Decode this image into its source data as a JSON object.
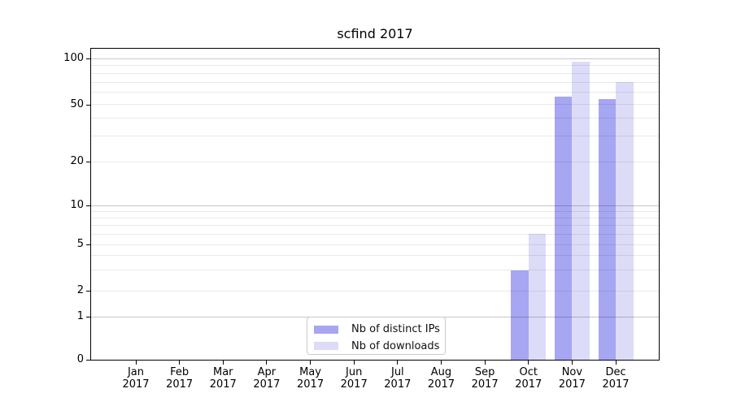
{
  "title": "scfind 2017",
  "chart_data": {
    "type": "bar",
    "title": "scfind 2017",
    "categories": [
      "Jan 2017",
      "Feb 2017",
      "Mar 2017",
      "Apr 2017",
      "May 2017",
      "Jun 2017",
      "Jul 2017",
      "Aug 2017",
      "Sep 2017",
      "Oct 2017",
      "Nov 2017",
      "Dec 2017"
    ],
    "series": [
      {
        "name": "Nb of distinct IPs",
        "color": "#a6a6f2",
        "values": [
          0,
          0,
          0,
          0,
          0,
          0,
          0,
          0,
          0,
          3,
          56,
          54
        ]
      },
      {
        "name": "Nb of downloads",
        "color": "#dcdcf8",
        "values": [
          0,
          0,
          0,
          0,
          0,
          0,
          0,
          0,
          0,
          6,
          95,
          70
        ]
      }
    ],
    "yticks": [
      0,
      1,
      2,
      5,
      10,
      20,
      50,
      100
    ],
    "minor_grid_values": [
      2,
      3,
      4,
      5,
      6,
      7,
      8,
      9,
      20,
      30,
      40,
      50,
      60,
      70,
      80,
      90
    ],
    "major_grid_values": [
      1,
      10,
      100
    ],
    "xlabel": "",
    "ylabel": "",
    "yscale": "log-like with zero baseline",
    "grid": "horizontal",
    "legend_position": "lower center"
  },
  "colors": {
    "bar_distinct_ips": "#a6a6f2",
    "bar_downloads": "#dcdcf8",
    "axis": "#000000",
    "background": "#ffffff"
  }
}
